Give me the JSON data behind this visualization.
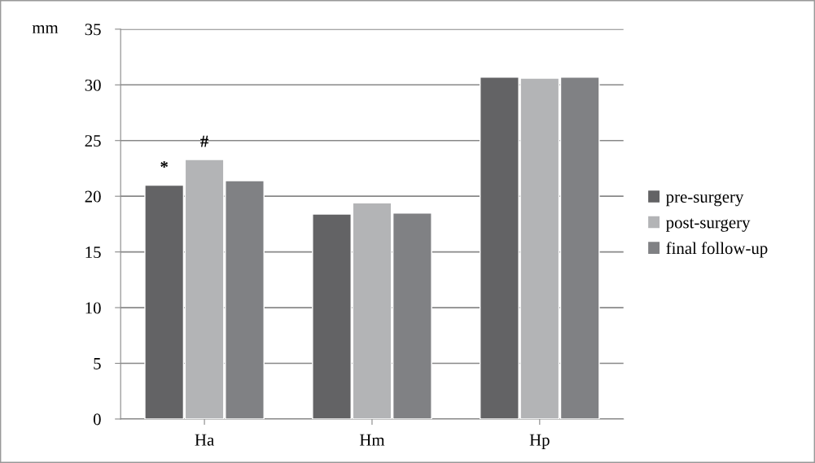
{
  "chart_data": {
    "type": "bar",
    "ylabel": "mm",
    "categories": [
      "Ha",
      "Hm",
      "Hp"
    ],
    "series": [
      {
        "name": "pre-surgery",
        "color": "#636365",
        "values": [
          21.0,
          18.4,
          30.7
        ]
      },
      {
        "name": "post-surgery",
        "color": "#b3b4b6",
        "values": [
          23.3,
          19.4,
          30.6
        ]
      },
      {
        "name": "final follow-up",
        "color": "#808184",
        "values": [
          21.4,
          18.5,
          30.7
        ]
      }
    ],
    "ylim": [
      0,
      35
    ],
    "yticks": [
      0,
      5,
      10,
      15,
      20,
      25,
      30,
      35
    ],
    "grid": "y",
    "legend": "right",
    "annotations": [
      "*",
      "#"
    ]
  }
}
